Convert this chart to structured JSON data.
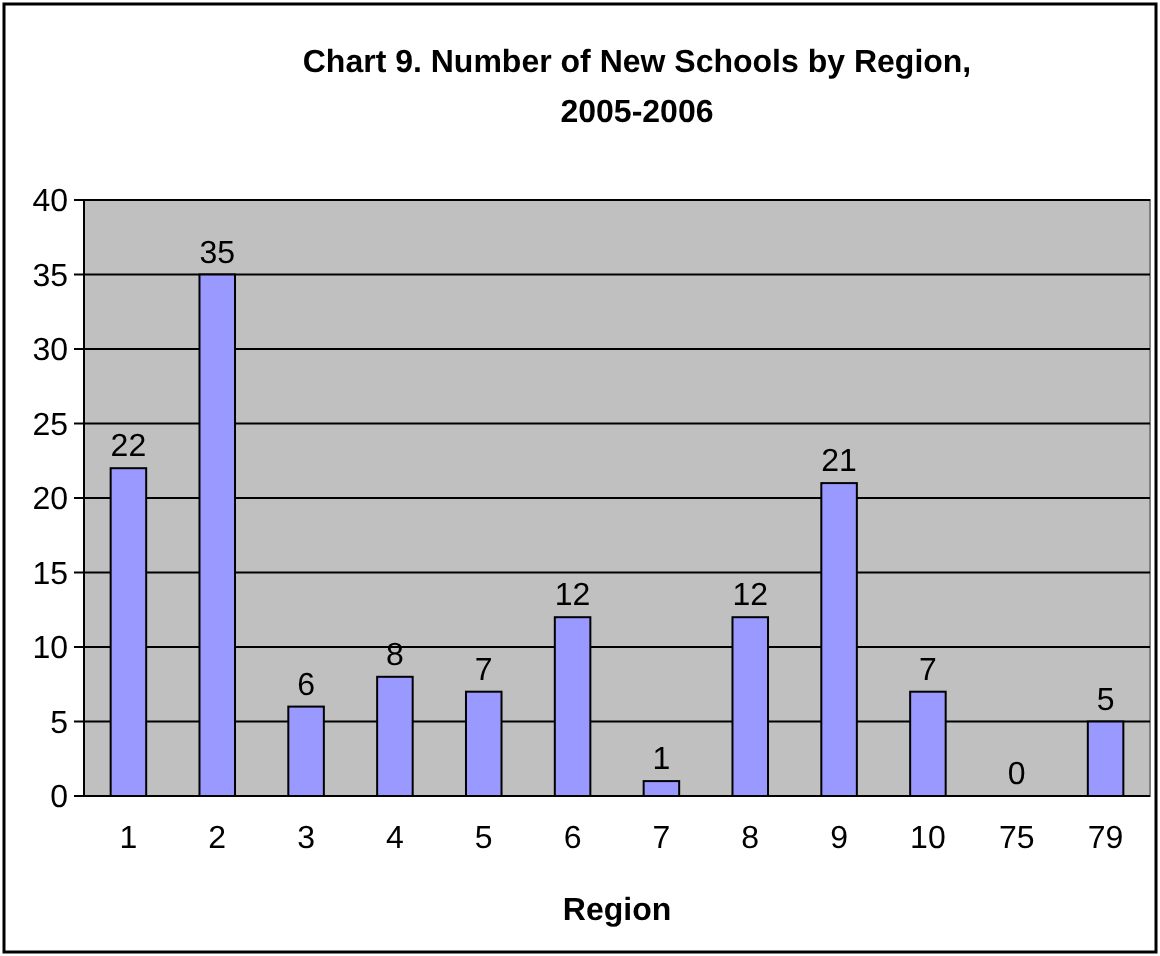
{
  "chart_data": {
    "type": "bar",
    "title": "Chart 9. Number of New Schools by Region, 2005-2006",
    "xlabel": "Region",
    "categories": [
      "1",
      "2",
      "3",
      "4",
      "5",
      "6",
      "7",
      "8",
      "9",
      "10",
      "75",
      "79"
    ],
    "values": [
      22,
      35,
      6,
      8,
      7,
      12,
      1,
      12,
      21,
      7,
      0,
      5
    ],
    "color": "#9999ff",
    "ylim": [
      0,
      40
    ],
    "yticks": [
      0,
      5,
      10,
      15,
      20,
      25,
      30,
      35,
      40
    ],
    "grid": "y",
    "data_labels": true
  }
}
